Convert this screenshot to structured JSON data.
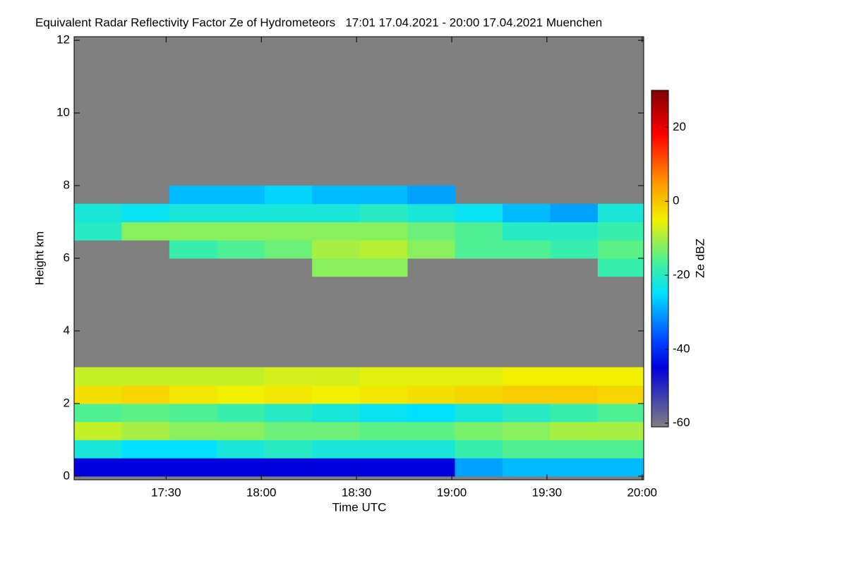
{
  "chart_data": {
    "type": "heatmap",
    "title": "Equivalent Radar Reflectivity Factor Ze of Hydrometeors   17:01 17.04.2021 - 20:00 17.04.2021 Muenchen",
    "x_label": "Time UTC",
    "y_label": "Height km",
    "colorbar_label": "Ze dBZ",
    "x": [
      1021,
      1036,
      1051,
      1066,
      1081,
      1096,
      1111,
      1126,
      1141,
      1156,
      1171,
      1186
    ],
    "y": [
      0,
      0.5,
      1,
      1.5,
      2,
      2.5,
      3,
      3.5,
      4,
      4.5,
      5,
      5.5,
      6,
      6.5,
      7,
      7.5
    ],
    "z": [
      [
        -45,
        -45,
        -45,
        -45,
        -45,
        -45,
        -45,
        -45,
        -30,
        -28,
        -28,
        -28
      ],
      [
        -22,
        -25,
        -25,
        -22,
        -20,
        -22,
        -22,
        -22,
        -18,
        -16,
        -16,
        -16
      ],
      [
        -8,
        -10,
        -12,
        -12,
        -14,
        -14,
        -15,
        -15,
        -13,
        -12,
        -10,
        -10
      ],
      [
        -16,
        -15,
        -16,
        -18,
        -20,
        -22,
        -24,
        -25,
        -22,
        -20,
        -18,
        -16
      ],
      [
        -3,
        -2,
        -4,
        -5,
        -4,
        -5,
        -4,
        -3,
        -2,
        -1,
        -1,
        -2
      ],
      [
        -8,
        -8,
        -8,
        -8,
        -7,
        -7,
        -6,
        -6,
        -6,
        -5,
        -5,
        -5
      ],
      [
        null,
        null,
        null,
        null,
        null,
        null,
        null,
        null,
        null,
        null,
        null,
        null
      ],
      [
        null,
        null,
        null,
        null,
        null,
        null,
        null,
        null,
        null,
        null,
        null,
        null
      ],
      [
        null,
        null,
        null,
        null,
        null,
        null,
        null,
        null,
        null,
        null,
        null,
        null
      ],
      [
        null,
        null,
        null,
        null,
        null,
        null,
        null,
        null,
        null,
        null,
        null,
        null
      ],
      [
        null,
        null,
        null,
        null,
        null,
        null,
        null,
        null,
        null,
        null,
        null,
        null
      ],
      [
        null,
        null,
        null,
        null,
        null,
        -12,
        -12,
        null,
        null,
        null,
        null,
        -18
      ],
      [
        null,
        null,
        -18,
        -16,
        -14,
        -10,
        -9,
        -12,
        -16,
        -16,
        -18,
        -15
      ],
      [
        -20,
        -12,
        -12,
        -12,
        -12,
        -12,
        -12,
        -14,
        -16,
        -20,
        -20,
        -18
      ],
      [
        -22,
        -24,
        -22,
        -22,
        -22,
        -22,
        -20,
        -22,
        -24,
        -28,
        -30,
        -22
      ],
      [
        null,
        null,
        -28,
        -28,
        -26,
        -28,
        -28,
        -30,
        null,
        null,
        null,
        null
      ]
    ],
    "xlim": [
      1021,
      1200.5
    ],
    "ylim": [
      -0.1,
      12.1
    ],
    "clim": [
      -61,
      30
    ],
    "xticks": [
      {
        "value": 1050,
        "label": "17:30"
      },
      {
        "value": 1080,
        "label": "18:00"
      },
      {
        "value": 1110,
        "label": "18:30"
      },
      {
        "value": 1140,
        "label": "19:00"
      },
      {
        "value": 1170,
        "label": "19:30"
      },
      {
        "value": 1200,
        "label": "20:00"
      }
    ],
    "yticks": [
      0,
      2,
      4,
      6,
      8,
      10,
      12
    ],
    "cticks": [
      -60,
      -40,
      -20,
      0,
      20
    ],
    "background_color": "#808080",
    "colorscale": [
      [
        -61,
        "#808080"
      ],
      [
        -45,
        "#0000dd"
      ],
      [
        -38,
        "#0040ff"
      ],
      [
        -25,
        "#00e0ff"
      ],
      [
        -17,
        "#40f0a0"
      ],
      [
        -5,
        "#f0f000"
      ],
      [
        5,
        "#ff9900"
      ],
      [
        18,
        "#ff0000"
      ],
      [
        30,
        "#800000"
      ]
    ]
  }
}
